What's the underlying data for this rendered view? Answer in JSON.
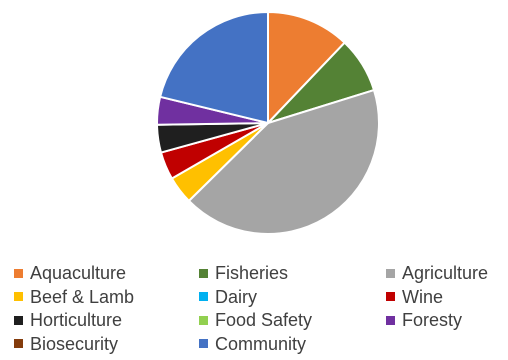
{
  "chart_data": {
    "type": "pie",
    "title": "",
    "slices": [
      {
        "label": "Aquaculture",
        "value": 12,
        "color": "#ED7D31"
      },
      {
        "label": "Fisheries",
        "value": 8,
        "color": "#548235"
      },
      {
        "label": "Agriculture",
        "value": 42,
        "color": "#A5A5A5"
      },
      {
        "label": "Beef & Lamb",
        "value": 4,
        "color": "#FFC000"
      },
      {
        "label": "Dairy",
        "value": 0,
        "color": "#00B0F0"
      },
      {
        "label": "Wine",
        "value": 4,
        "color": "#C00000"
      },
      {
        "label": "Horticulture",
        "value": 4,
        "color": "#1F1F1F"
      },
      {
        "label": "Food Safety",
        "value": 0,
        "color": "#92D050"
      },
      {
        "label": "Foresty",
        "value": 4,
        "color": "#7030A0"
      },
      {
        "label": "Biosecurity",
        "value": 0,
        "color": "#843C0C"
      },
      {
        "label": "Community",
        "value": 21,
        "color": "#4472C4"
      }
    ],
    "legend_position": "bottom"
  }
}
